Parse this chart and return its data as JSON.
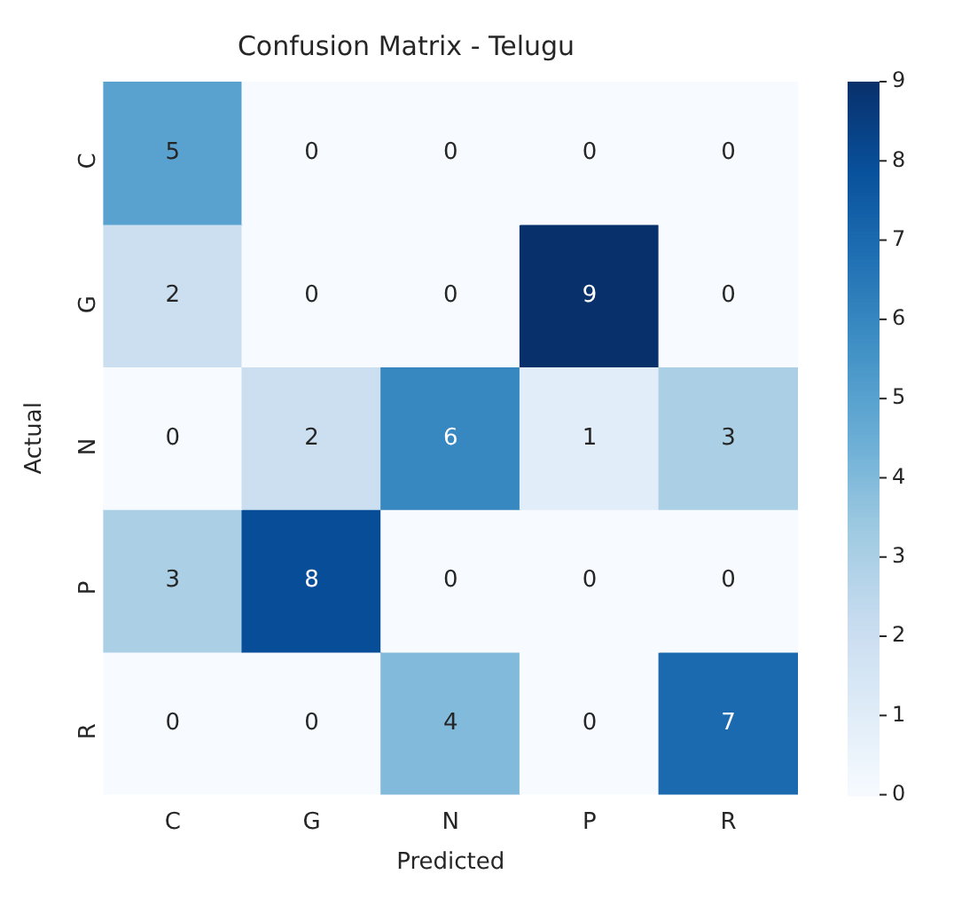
{
  "chart_data": {
    "type": "heatmap",
    "title": "Confusion Matrix - Telugu",
    "xlabel": "Predicted",
    "ylabel": "Actual",
    "categories": [
      "C",
      "G",
      "N",
      "P",
      "R"
    ],
    "y_categories": [
      "C",
      "G",
      "N",
      "P",
      "R"
    ],
    "cells": [
      [
        5,
        0,
        0,
        0,
        0
      ],
      [
        2,
        0,
        0,
        9,
        0
      ],
      [
        0,
        2,
        6,
        1,
        3
      ],
      [
        3,
        8,
        0,
        0,
        0
      ],
      [
        0,
        0,
        4,
        0,
        7
      ]
    ],
    "clim": [
      0,
      9
    ],
    "cticks": [
      0,
      1,
      2,
      3,
      4,
      5,
      6,
      7,
      8,
      9
    ],
    "data_labels": true
  }
}
